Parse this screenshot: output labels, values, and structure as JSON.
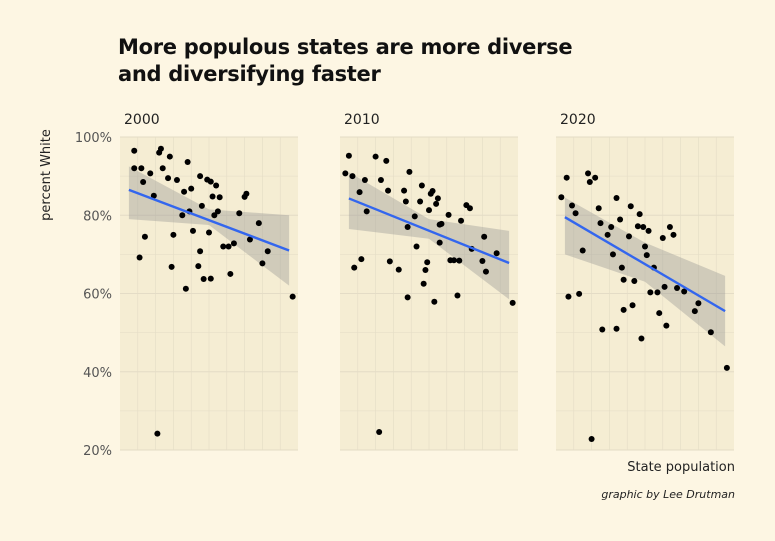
{
  "chart_data": {
    "type": "scatter",
    "title_lines": [
      "More populous states are more diverse",
      "and diversifying faster"
    ],
    "xlabel": "State population",
    "ylabel": "percent White",
    "credit": "graphic by Lee Drutman",
    "ylim": [
      20,
      100
    ],
    "yticks": [
      20,
      40,
      60,
      80,
      100
    ],
    "ytick_labels": [
      "20%",
      "40%",
      "60%",
      "80%",
      "100%"
    ],
    "x_axis": "log-scaled state population rank, tick labels not shown",
    "grid": true,
    "colors": {
      "panel": "#f5edd3",
      "background": "#fdf6e3",
      "grid": "#e4dcc6",
      "point": "#000000",
      "trend": "#3366ee",
      "band": "#8c8c8c"
    },
    "facets": [
      {
        "label": "2000",
        "trend": {
          "x": [
            0.05,
            0.95
          ],
          "y": [
            86.5,
            71.0
          ]
        },
        "band": {
          "x": [
            0.05,
            0.5,
            0.95
          ],
          "upper": [
            92.5,
            81.5,
            80.0
          ],
          "lower": [
            79.0,
            77.5,
            62.0
          ]
        },
        "points": [
          [
            0.08,
            92
          ],
          [
            0.08,
            96.5
          ],
          [
            0.11,
            69.2
          ],
          [
            0.12,
            92
          ],
          [
            0.13,
            88.5
          ],
          [
            0.14,
            74.5
          ],
          [
            0.17,
            90.7
          ],
          [
            0.19,
            85.0
          ],
          [
            0.21,
            24.2
          ],
          [
            0.22,
            96.0
          ],
          [
            0.23,
            97.0
          ],
          [
            0.24,
            92.0
          ],
          [
            0.27,
            89.5
          ],
          [
            0.28,
            95.0
          ],
          [
            0.29,
            66.8
          ],
          [
            0.3,
            75.0
          ],
          [
            0.32,
            89.0
          ],
          [
            0.35,
            80.0
          ],
          [
            0.36,
            86.0
          ],
          [
            0.37,
            61.2
          ],
          [
            0.38,
            93.6
          ],
          [
            0.39,
            81.0
          ],
          [
            0.4,
            86.8
          ],
          [
            0.41,
            76.0
          ],
          [
            0.44,
            67.0
          ],
          [
            0.45,
            90.0
          ],
          [
            0.45,
            70.8
          ],
          [
            0.46,
            82.4
          ],
          [
            0.47,
            63.7
          ],
          [
            0.49,
            89.1
          ],
          [
            0.5,
            75.6
          ],
          [
            0.51,
            88.6
          ],
          [
            0.51,
            63.8
          ],
          [
            0.52,
            84.8
          ],
          [
            0.53,
            80.0
          ],
          [
            0.54,
            87.6
          ],
          [
            0.55,
            81.0
          ],
          [
            0.56,
            84.6
          ],
          [
            0.58,
            72.0
          ],
          [
            0.61,
            72.0
          ],
          [
            0.62,
            65.0
          ],
          [
            0.64,
            72.8
          ],
          [
            0.67,
            80.5
          ],
          [
            0.7,
            84.7
          ],
          [
            0.71,
            85.5
          ],
          [
            0.73,
            73.8
          ],
          [
            0.78,
            78.0
          ],
          [
            0.8,
            67.7
          ],
          [
            0.83,
            70.8
          ],
          [
            0.97,
            59.2
          ]
        ]
      },
      {
        "label": "2010",
        "trend": {
          "x": [
            0.05,
            0.95
          ],
          "y": [
            84.3,
            67.8
          ]
        },
        "band": {
          "x": [
            0.05,
            0.5,
            0.95
          ],
          "upper": [
            91.0,
            79.0,
            76.0
          ],
          "lower": [
            76.5,
            74.0,
            58.5
          ]
        },
        "points": [
          [
            0.03,
            90.7
          ],
          [
            0.05,
            95.2
          ],
          [
            0.07,
            90.0
          ],
          [
            0.08,
            66.6
          ],
          [
            0.11,
            85.9
          ],
          [
            0.12,
            68.8
          ],
          [
            0.14,
            89.0
          ],
          [
            0.15,
            81.0
          ],
          [
            0.2,
            95.0
          ],
          [
            0.22,
            24.6
          ],
          [
            0.23,
            89.0
          ],
          [
            0.26,
            93.9
          ],
          [
            0.27,
            86.3
          ],
          [
            0.28,
            68.2
          ],
          [
            0.33,
            66.1
          ],
          [
            0.36,
            86.3
          ],
          [
            0.37,
            83.5
          ],
          [
            0.38,
            59.0
          ],
          [
            0.38,
            77.0
          ],
          [
            0.39,
            91.1
          ],
          [
            0.42,
            79.7
          ],
          [
            0.43,
            72.0
          ],
          [
            0.45,
            83.5
          ],
          [
            0.46,
            87.6
          ],
          [
            0.47,
            62.5
          ],
          [
            0.48,
            66.0
          ],
          [
            0.49,
            68.0
          ],
          [
            0.5,
            81.3
          ],
          [
            0.51,
            85.5
          ],
          [
            0.52,
            86.2
          ],
          [
            0.53,
            57.9
          ],
          [
            0.54,
            82.9
          ],
          [
            0.55,
            84.3
          ],
          [
            0.56,
            77.6
          ],
          [
            0.56,
            73.0
          ],
          [
            0.57,
            77.8
          ],
          [
            0.61,
            80.1
          ],
          [
            0.62,
            68.5
          ],
          [
            0.64,
            68.5
          ],
          [
            0.66,
            59.5
          ],
          [
            0.67,
            68.4
          ],
          [
            0.68,
            78.6
          ],
          [
            0.71,
            82.6
          ],
          [
            0.73,
            81.8
          ],
          [
            0.74,
            71.4
          ],
          [
            0.8,
            68.3
          ],
          [
            0.81,
            74.5
          ],
          [
            0.82,
            65.6
          ],
          [
            0.88,
            70.3
          ],
          [
            0.97,
            57.6
          ]
        ]
      },
      {
        "label": "2020",
        "trend": {
          "x": [
            0.05,
            0.95
          ],
          "y": [
            79.5,
            55.5
          ]
        },
        "band": {
          "x": [
            0.05,
            0.5,
            0.95
          ],
          "upper": [
            84.5,
            73.0,
            64.5
          ],
          "lower": [
            70.0,
            63.0,
            46.5
          ]
        },
        "points": [
          [
            0.03,
            84.6
          ],
          [
            0.06,
            89.6
          ],
          [
            0.07,
            59.2
          ],
          [
            0.09,
            82.5
          ],
          [
            0.11,
            80.5
          ],
          [
            0.13,
            59.9
          ],
          [
            0.15,
            71.0
          ],
          [
            0.18,
            90.7
          ],
          [
            0.19,
            88.5
          ],
          [
            0.2,
            22.8
          ],
          [
            0.22,
            89.6
          ],
          [
            0.24,
            81.8
          ],
          [
            0.25,
            78.0
          ],
          [
            0.26,
            50.8
          ],
          [
            0.29,
            75.0
          ],
          [
            0.31,
            77.0
          ],
          [
            0.32,
            70.0
          ],
          [
            0.34,
            84.4
          ],
          [
            0.34,
            51.0
          ],
          [
            0.36,
            78.9
          ],
          [
            0.37,
            66.6
          ],
          [
            0.38,
            63.5
          ],
          [
            0.38,
            55.8
          ],
          [
            0.41,
            74.6
          ],
          [
            0.42,
            82.3
          ],
          [
            0.43,
            57.0
          ],
          [
            0.44,
            63.2
          ],
          [
            0.46,
            77.2
          ],
          [
            0.47,
            80.3
          ],
          [
            0.48,
            48.5
          ],
          [
            0.49,
            77.0
          ],
          [
            0.5,
            72.0
          ],
          [
            0.51,
            69.8
          ],
          [
            0.52,
            76.0
          ],
          [
            0.53,
            60.3
          ],
          [
            0.55,
            66.6
          ],
          [
            0.57,
            60.3
          ],
          [
            0.58,
            55.0
          ],
          [
            0.6,
            74.2
          ],
          [
            0.61,
            61.7
          ],
          [
            0.62,
            51.8
          ],
          [
            0.64,
            77.0
          ],
          [
            0.66,
            75.0
          ],
          [
            0.68,
            61.4
          ],
          [
            0.72,
            60.5
          ],
          [
            0.78,
            55.5
          ],
          [
            0.8,
            57.5
          ],
          [
            0.87,
            50.1
          ],
          [
            0.96,
            41.0
          ]
        ]
      }
    ]
  }
}
